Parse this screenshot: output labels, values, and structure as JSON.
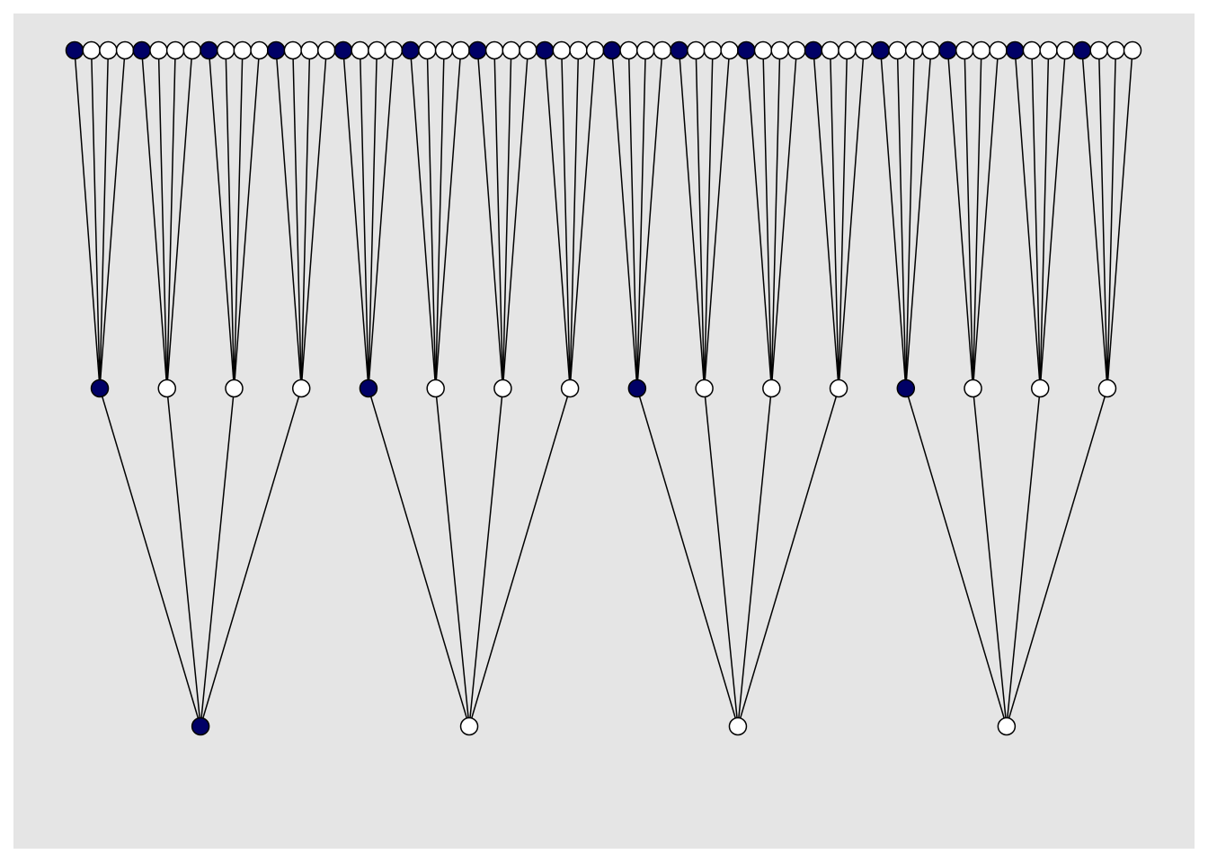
{
  "diagram": {
    "background": "#e5e5e5",
    "first_child_color": "#000066",
    "node_color": "#ffffff",
    "edge_color": "#000000"
  }
}
